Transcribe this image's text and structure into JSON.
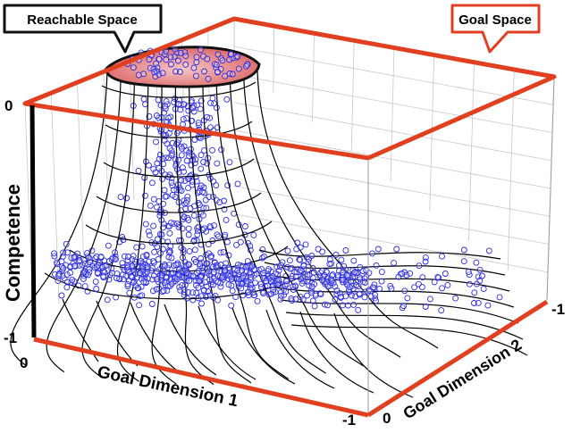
{
  "callouts": {
    "reachable": "Reachable Space",
    "goal": "Goal Space"
  },
  "axes": {
    "z_label": "Competence",
    "x_label": "Goal Dimension 1",
    "y_label": "Goal Dimension 2",
    "z_top_tick": "0",
    "z_bottom_tick": "-1",
    "x_start_tick": "0",
    "x_end_tick": "-1",
    "y_start_tick": "0",
    "y_end_tick": "-1"
  },
  "colors": {
    "goal_space": "#e0401f",
    "points": "#2a2ae0",
    "mesh": "#000000",
    "cap_fill": "#e87a7a",
    "grid": "#bfbfbf"
  }
}
